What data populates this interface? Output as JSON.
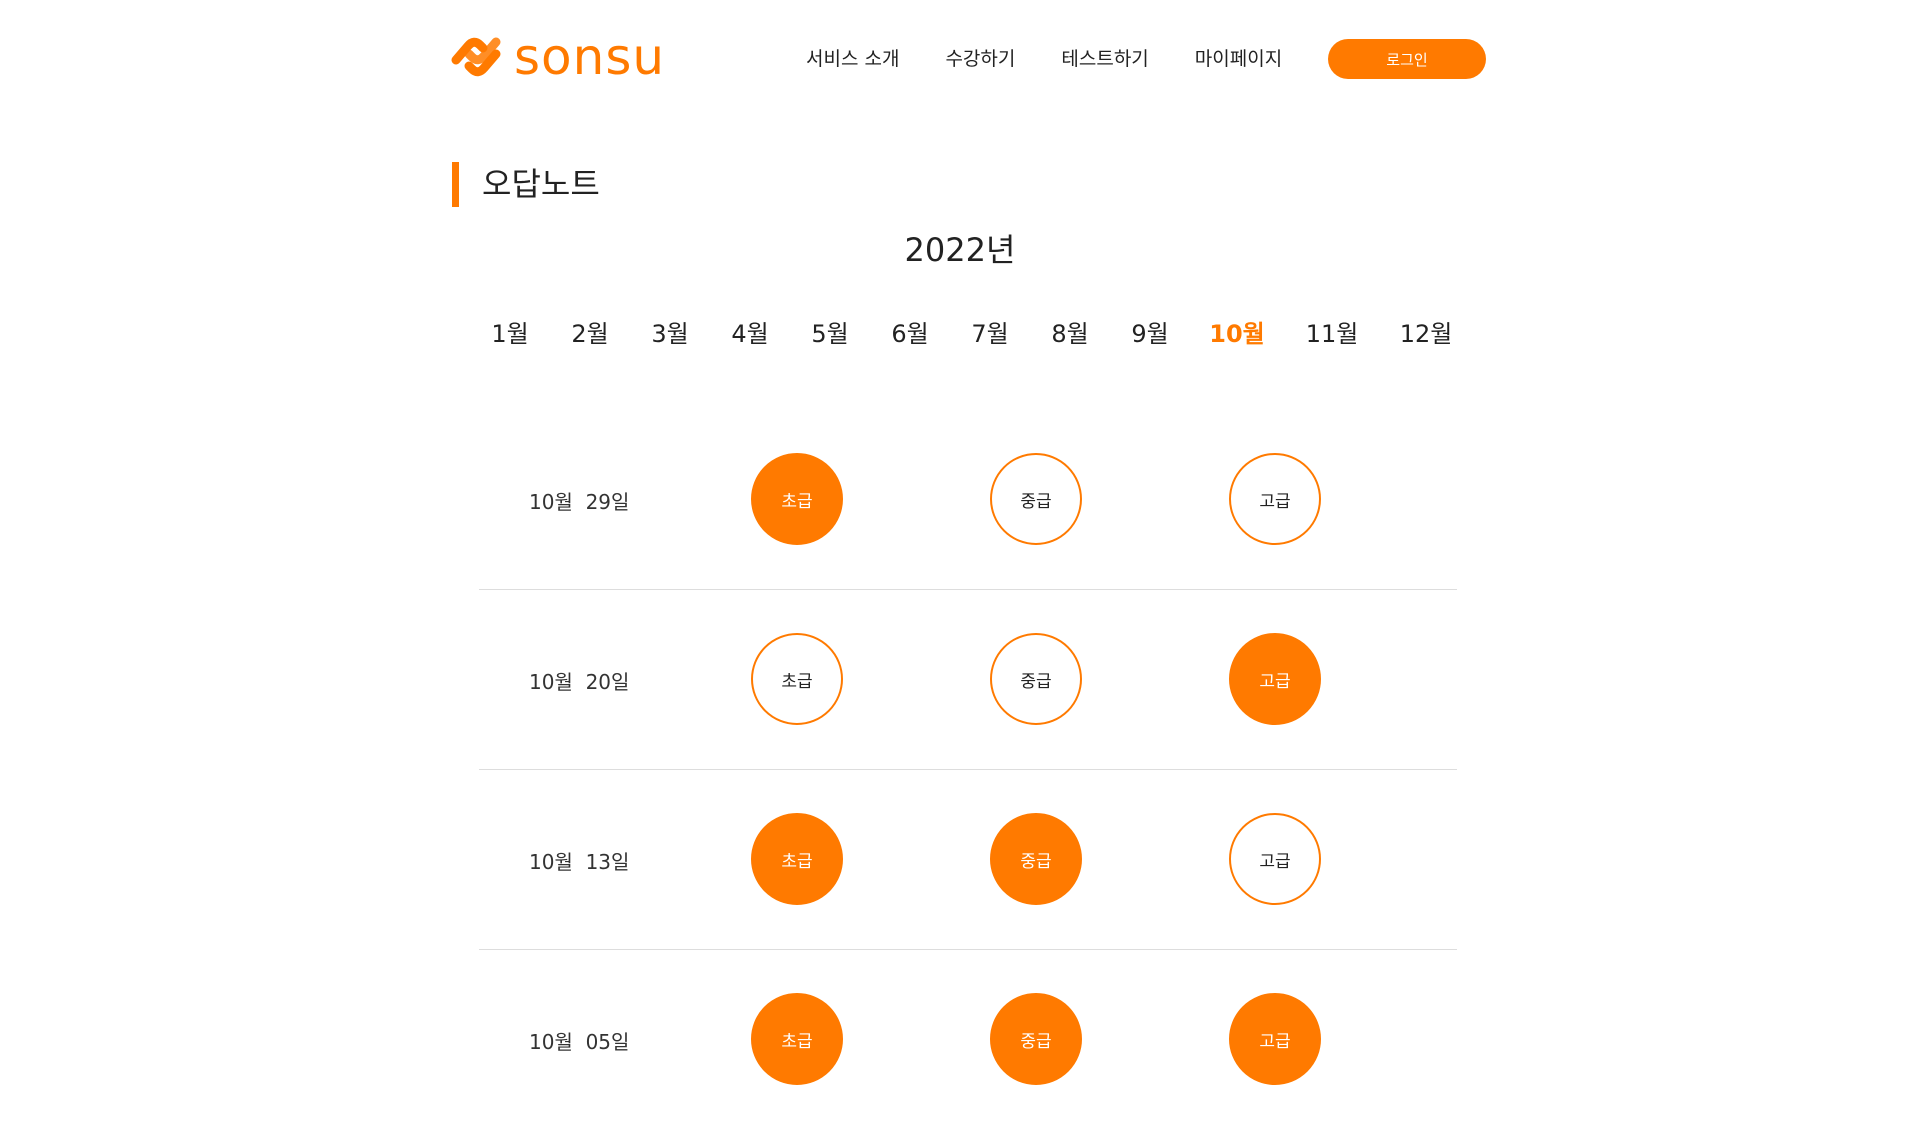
{
  "brand": {
    "name": "sonsu",
    "accent": "#ff7a00"
  },
  "nav": {
    "items": [
      "서비스 소개",
      "수강하기",
      "테스트하기",
      "마이페이지"
    ],
    "login_label": "로그인"
  },
  "page": {
    "title": "오답노트",
    "year": "2022년"
  },
  "months": {
    "items": [
      "1월",
      "2월",
      "3월",
      "4월",
      "5월",
      "6월",
      "7월",
      "8월",
      "9월",
      "10월",
      "11월",
      "12월"
    ],
    "selected": "10월"
  },
  "records": [
    {
      "date": "10월  29일",
      "levels": [
        {
          "label": "초급",
          "filled": true
        },
        {
          "label": "중급",
          "filled": false
        },
        {
          "label": "고급",
          "filled": false
        }
      ]
    },
    {
      "date": "10월  20일",
      "levels": [
        {
          "label": "초급",
          "filled": false
        },
        {
          "label": "중급",
          "filled": false
        },
        {
          "label": "고급",
          "filled": true
        }
      ]
    },
    {
      "date": "10월  13일",
      "levels": [
        {
          "label": "초급",
          "filled": true
        },
        {
          "label": "중급",
          "filled": true
        },
        {
          "label": "고급",
          "filled": false
        }
      ]
    },
    {
      "date": "10월  05일",
      "levels": [
        {
          "label": "초급",
          "filled": true
        },
        {
          "label": "중급",
          "filled": true
        },
        {
          "label": "고급",
          "filled": true
        }
      ]
    }
  ]
}
